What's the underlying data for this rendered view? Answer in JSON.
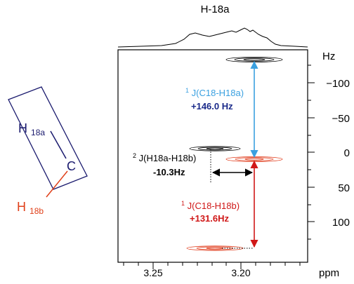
{
  "header": {
    "title": "H-18a"
  },
  "molecule": {
    "h18a_main": "H",
    "h18a_sub": "18a",
    "carbon": "C",
    "h18b_main": "H",
    "h18b_sub": "18b",
    "colors": {
      "frame": "#1a1a6e",
      "h18b": "#e0401a"
    }
  },
  "axes": {
    "x_unit": "ppm",
    "y_unit": "Hz",
    "x_ticks": [
      "3.25",
      "3.20"
    ],
    "y_ticks": [
      "−100",
      "−50",
      "0",
      "50",
      "100"
    ]
  },
  "annotations": {
    "one_j_a": {
      "sup": "1",
      "text": "J(C18-H18a)",
      "value": "+146.0 Hz",
      "color_label": "#3aa0e0",
      "color_value": "#1a2a8a"
    },
    "two_j": {
      "sup": "2",
      "text": "J(H18a-H18b)",
      "value": "-10.3Hz",
      "color": "#000000"
    },
    "one_j_b": {
      "sup": "1",
      "text": "J(C18-H18b)",
      "value": "+131.6Hz",
      "color": "#d01818"
    }
  },
  "colors": {
    "black_peak": "#000000",
    "red_peak": "#e03a1a",
    "blue_arrow": "#3aa0e0",
    "red_arrow": "#d01818"
  }
}
